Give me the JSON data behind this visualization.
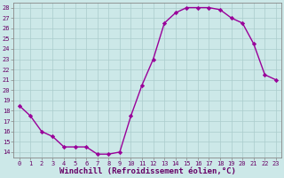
{
  "x": [
    0,
    1,
    2,
    3,
    4,
    5,
    6,
    7,
    8,
    9,
    10,
    11,
    12,
    13,
    14,
    15,
    16,
    17,
    18,
    19,
    20,
    21,
    22,
    23
  ],
  "y": [
    18.5,
    17.5,
    16.0,
    15.5,
    14.5,
    14.5,
    14.5,
    13.8,
    13.8,
    14.0,
    17.5,
    20.5,
    23.0,
    26.5,
    27.5,
    28.0,
    28.0,
    28.0,
    27.8,
    27.0,
    26.5,
    24.5,
    21.5,
    21.0
  ],
  "line_color": "#990099",
  "marker": "D",
  "marker_size": 2.2,
  "bg_color": "#cce8e8",
  "grid_color": "#aacccc",
  "xlabel": "Windchill (Refroidissement éolien,°C)",
  "ylabel": "",
  "xlim": [
    -0.5,
    23.5
  ],
  "ylim": [
    13.5,
    28.5
  ],
  "yticks": [
    14,
    15,
    16,
    17,
    18,
    19,
    20,
    21,
    22,
    23,
    24,
    25,
    26,
    27,
    28
  ],
  "xticks": [
    0,
    1,
    2,
    3,
    4,
    5,
    6,
    7,
    8,
    9,
    10,
    11,
    12,
    13,
    14,
    15,
    16,
    17,
    18,
    19,
    20,
    21,
    22,
    23
  ],
  "tick_fontsize": 5.0,
  "xlabel_fontsize": 6.5,
  "line_width": 1.0,
  "spine_color": "#888888"
}
